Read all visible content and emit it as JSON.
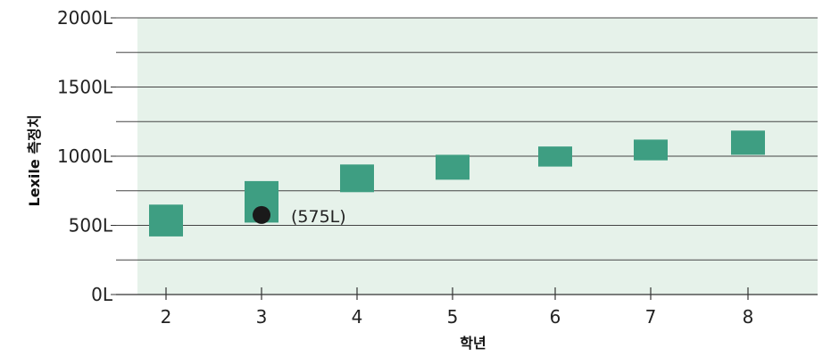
{
  "chart_data": {
    "type": "scatter",
    "xlabel": "학년",
    "ylabel": "Lexile 측정치",
    "categories": [
      "2",
      "3",
      "4",
      "5",
      "6",
      "7",
      "8"
    ],
    "ranges": [
      {
        "grade": "2",
        "low": 420,
        "high": 650
      },
      {
        "grade": "3",
        "low": 520,
        "high": 820
      },
      {
        "grade": "4",
        "low": 740,
        "high": 940
      },
      {
        "grade": "5",
        "low": 830,
        "high": 1010
      },
      {
        "grade": "6",
        "low": 925,
        "high": 1070
      },
      {
        "grade": "7",
        "low": 970,
        "high": 1120
      },
      {
        "grade": "8",
        "low": 1010,
        "high": 1185
      }
    ],
    "point": {
      "grade": "3",
      "value": 575,
      "label": "(575L)"
    },
    "ylim": [
      0,
      2000
    ],
    "yticks": [
      {
        "value": 0,
        "label": "0L"
      },
      {
        "value": 500,
        "label": "500L"
      },
      {
        "value": 1000,
        "label": "1000L"
      },
      {
        "value": 1500,
        "label": "1500L"
      },
      {
        "value": 2000,
        "label": "2000L"
      }
    ],
    "minor_gridlines": [
      250,
      750,
      1250,
      1750
    ],
    "grid": true,
    "colors": {
      "plot_background": "#e6f2ea",
      "range_box": "#3e9e82",
      "point": "#1a1a1a",
      "gridline": "#444444"
    }
  }
}
